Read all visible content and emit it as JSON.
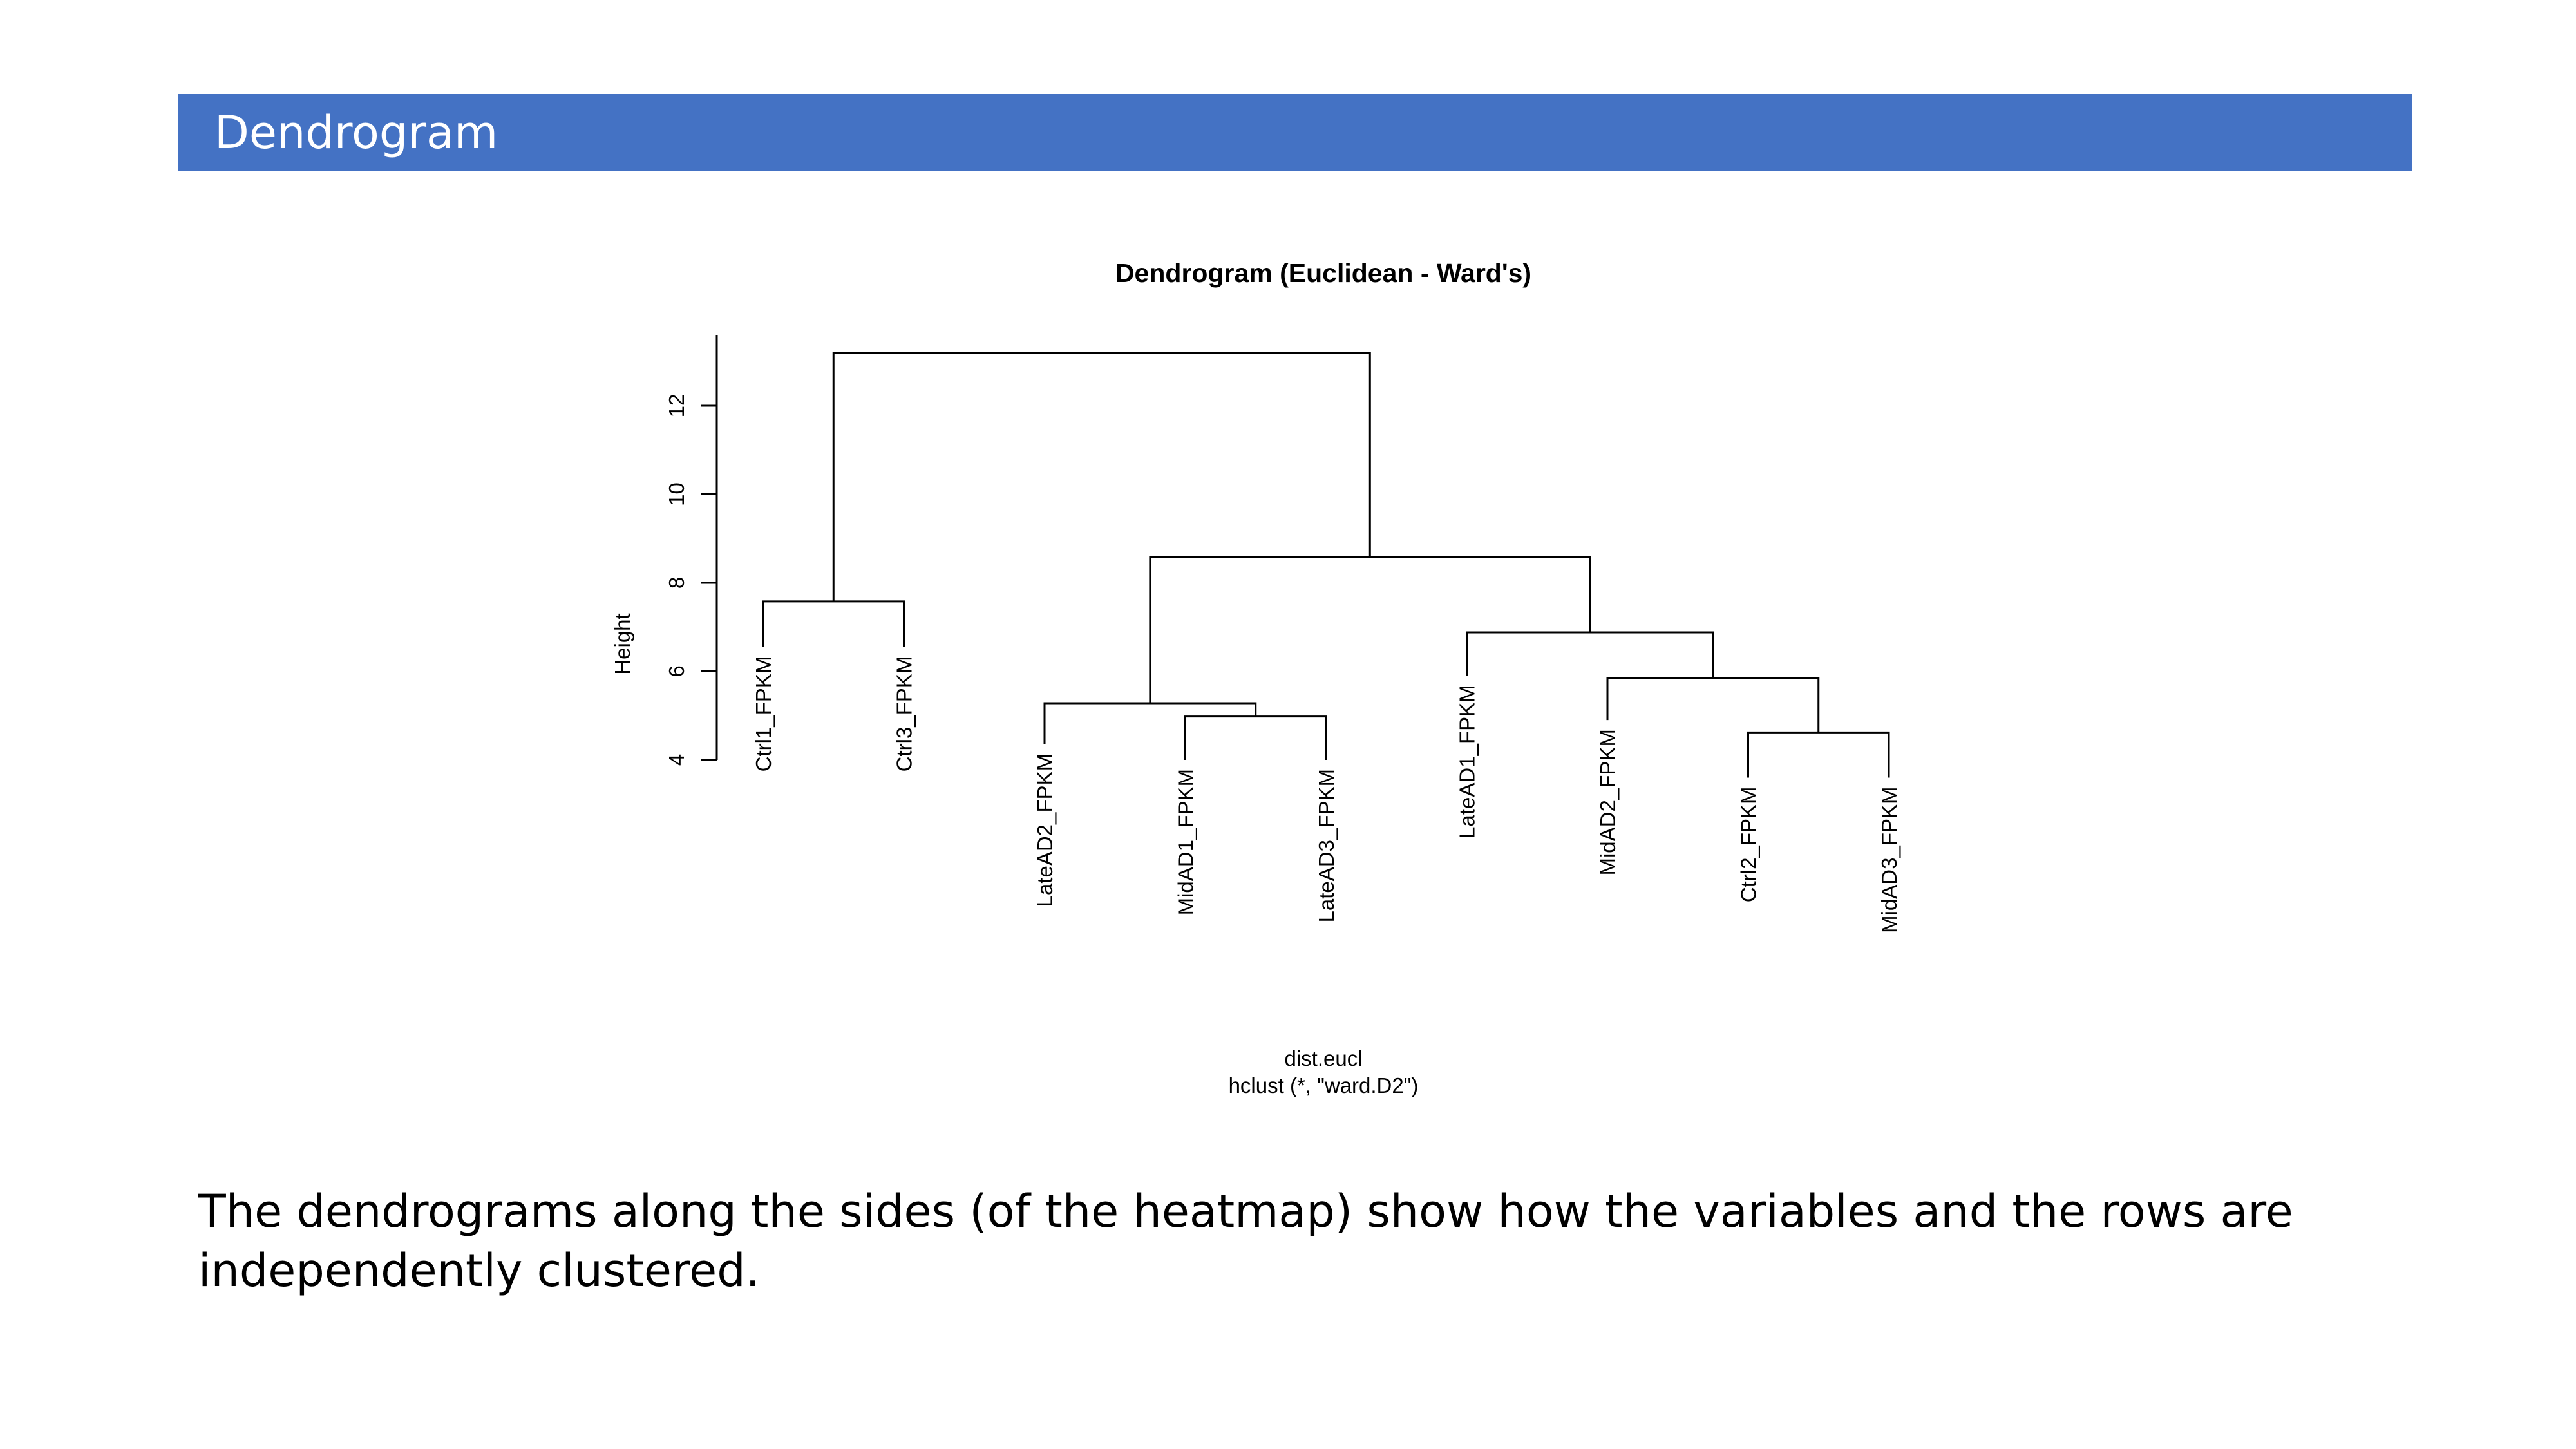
{
  "slide": {
    "title": "Dendrogram",
    "caption": "The dendrograms along the sides (of the heatmap) show how the variables and the rows are independently clustered.",
    "banner_color": "#4472C4"
  },
  "chart_data": {
    "type": "dendrogram",
    "title": "Dendrogram (Euclidean - Ward's)",
    "ylabel": "Height",
    "xlabel": "dist.eucl",
    "sub": "hclust (*, \"ward.D2\")",
    "y_ticks": [
      4,
      6,
      8,
      10,
      12
    ],
    "ylim": [
      4,
      13.6
    ],
    "leaves": [
      {
        "label": "Ctrl1_FPKM",
        "height": 6.55
      },
      {
        "label": "Ctrl3_FPKM",
        "height": 6.55
      },
      {
        "label": "LateAD2_FPKM",
        "height": 4.35
      },
      {
        "label": "MidAD1_FPKM",
        "height": 4.0
      },
      {
        "label": "LateAD3_FPKM",
        "height": 4.0
      },
      {
        "label": "LateAD1_FPKM",
        "height": 5.9
      },
      {
        "label": "MidAD2_FPKM",
        "height": 4.9
      },
      {
        "label": "Ctrl2_FPKM",
        "height": 3.6
      },
      {
        "label": "MidAD3_FPKM",
        "height": 3.6
      }
    ],
    "merges": [
      {
        "left": "L0",
        "right": "L1",
        "height": 7.58
      },
      {
        "left": "L3",
        "right": "L4",
        "height": 4.98
      },
      {
        "left": "L2",
        "right": "M1",
        "height": 5.28
      },
      {
        "left": "L7",
        "right": "L8",
        "height": 4.62
      },
      {
        "left": "L6",
        "right": "M3",
        "height": 5.85
      },
      {
        "left": "L5",
        "right": "M4",
        "height": 6.88
      },
      {
        "left": "M2",
        "right": "M5",
        "height": 8.58
      },
      {
        "left": "M0",
        "right": "M6",
        "height": 13.2
      }
    ]
  }
}
